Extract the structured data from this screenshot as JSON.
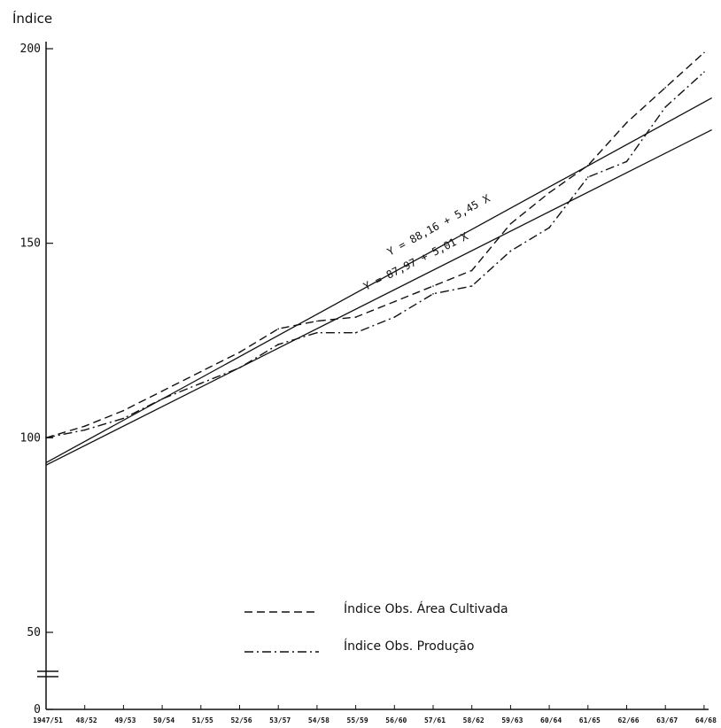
{
  "chart_data": {
    "type": "line",
    "ylabel": "Índice",
    "xlabel": "",
    "ylim": [
      0,
      200
    ],
    "yticks": [
      0,
      50,
      100,
      150,
      200
    ],
    "ytick_labels": [
      "0",
      "50",
      "100",
      "150",
      "200"
    ],
    "categories": [
      "1947/51",
      "48/52",
      "49/53",
      "50/54",
      "51/55",
      "52/56",
      "53/57",
      "54/58",
      "55/59",
      "56/60",
      "57/61",
      "58/62",
      "59/63",
      "60/64",
      "61/65",
      "62/66",
      "63/67",
      "64/68"
    ],
    "series": [
      {
        "name": "Índice Obs. Área Cultivada",
        "style": "dashed",
        "values": [
          100,
          103,
          107,
          112,
          117,
          122,
          128,
          130,
          131,
          135,
          139,
          143,
          155,
          163,
          170,
          181,
          190,
          199
        ]
      },
      {
        "name": "Índice Obs. Produção",
        "style": "dashdot",
        "values": [
          100,
          102,
          105,
          110,
          114,
          118,
          124,
          127,
          127,
          131,
          137,
          139,
          148,
          154,
          167,
          171,
          185,
          194
        ]
      }
    ],
    "trend_lines": [
      {
        "label": "Y = 88,16 + 5,45 X",
        "intercept": 88.16,
        "slope": 5.45
      },
      {
        "label": "Y = 87,97 + 5,01 X",
        "intercept": 87.97,
        "slope": 5.01
      }
    ],
    "grid": false,
    "legend_position": "lower-center"
  }
}
